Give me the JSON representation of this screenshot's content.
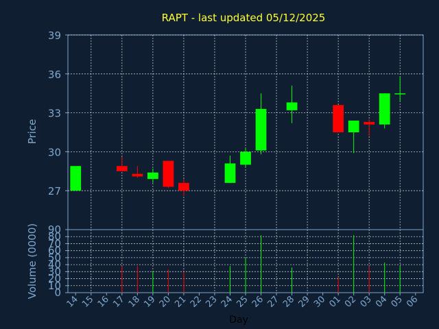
{
  "chart_data": {
    "type": "candlestick",
    "title": "RAPT - last updated 05/12/2025",
    "ylabel": "Price",
    "volume_label": "Volume (0000)",
    "xlabel": "Day",
    "ylim": [
      24,
      39
    ],
    "yticks": [
      27,
      30,
      33,
      36,
      39
    ],
    "volume_ylim": [
      0,
      90
    ],
    "volume_ticks": [
      0,
      10,
      20,
      30,
      40,
      50,
      60,
      70,
      80,
      90
    ],
    "colors": {
      "up": "#00ff00",
      "down": "#ff0000",
      "background": "#0f1f31",
      "axis": "#7fa7cd",
      "title": "#ffff33"
    },
    "grid": true,
    "x_labels": [
      "14",
      "15",
      "16",
      "17",
      "18",
      "19",
      "20",
      "21",
      "22",
      "23",
      "24",
      "25",
      "26",
      "27",
      "28",
      "29",
      "30",
      "01",
      "02",
      "03",
      "04",
      "05",
      "06"
    ],
    "candles": [
      {
        "day": "14",
        "open": 27.0,
        "high": 28.9,
        "low": 27.0,
        "close": 28.9,
        "volume": 0
      },
      {
        "day": "17",
        "open": 28.9,
        "high": 29.6,
        "low": 28.5,
        "close": 28.5,
        "volume": 38
      },
      {
        "day": "18",
        "open": 28.3,
        "high": 28.9,
        "low": 28.0,
        "close": 28.1,
        "volume": 38
      },
      {
        "day": "19",
        "open": 27.9,
        "high": 28.7,
        "low": 27.6,
        "close": 28.4,
        "volume": 30
      },
      {
        "day": "20",
        "open": 29.3,
        "high": 29.3,
        "low": 27.2,
        "close": 27.3,
        "volume": 33
      },
      {
        "day": "21",
        "open": 27.6,
        "high": 27.9,
        "low": 26.6,
        "close": 27.0,
        "volume": 30
      },
      {
        "day": "24",
        "open": 27.6,
        "high": 29.7,
        "low": 27.6,
        "close": 29.1,
        "volume": 38
      },
      {
        "day": "25",
        "open": 29.0,
        "high": 30.3,
        "low": 28.8,
        "close": 30.0,
        "volume": 50
      },
      {
        "day": "26",
        "open": 30.1,
        "high": 34.5,
        "low": 29.8,
        "close": 33.3,
        "volume": 82
      },
      {
        "day": "28",
        "open": 33.2,
        "high": 35.1,
        "low": 32.2,
        "close": 33.8,
        "volume": 36
      },
      {
        "day": "01",
        "open": 33.6,
        "high": 33.6,
        "low": 31.5,
        "close": 31.5,
        "volume": 22
      },
      {
        "day": "02",
        "open": 31.5,
        "high": 32.4,
        "low": 29.9,
        "close": 32.4,
        "volume": 82
      },
      {
        "day": "03",
        "open": 32.3,
        "high": 32.5,
        "low": 31.2,
        "close": 32.1,
        "volume": 38
      },
      {
        "day": "04",
        "open": 32.1,
        "high": 34.5,
        "low": 31.8,
        "close": 34.5,
        "volume": 43
      },
      {
        "day": "05",
        "open": 34.5,
        "high": 35.8,
        "low": 33.9,
        "close": 34.5,
        "volume": 38
      }
    ]
  }
}
